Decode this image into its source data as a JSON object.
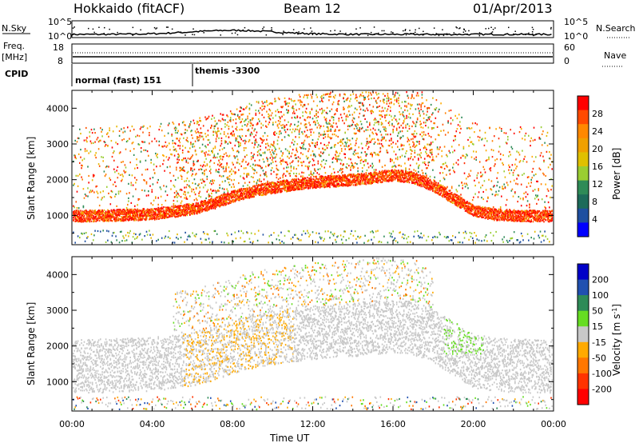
{
  "header": {
    "station": "Hokkaido (fitACF)",
    "beam": "Beam 12",
    "date": "01/Apr/2013"
  },
  "top_panels": {
    "nsky_label": "N.Sky",
    "nsky_ticks": [
      "10^5",
      "10^0"
    ],
    "nsearch_label": "N.Search",
    "nsearch_ticks": [
      "10^5",
      "10^0"
    ],
    "freq_label_top": "Freq.",
    "freq_label_unit": "[MHz]",
    "freq_ticks": [
      "18",
      "8"
    ],
    "nave_label": "Nave",
    "nave_ticks": [
      "60",
      "0"
    ],
    "cpid_label": "CPID",
    "cpid_segments": [
      {
        "start_hour": 0,
        "label": "normal (fast) 151"
      },
      {
        "start_hour": 6,
        "label": "themis -3300"
      }
    ]
  },
  "chart_data": [
    {
      "type": "heatmap",
      "panel": "power",
      "ylabel": "Slant Range [km]",
      "xlim_hours": [
        0,
        24
      ],
      "ylim": [
        180,
        4500
      ],
      "y_ticks": [
        1000,
        2000,
        3000,
        4000
      ],
      "colorbar_label": "Power [dB]",
      "colorbar_ticks": [
        "28",
        "24",
        "20",
        "16",
        "12",
        "8",
        "4"
      ],
      "colorbar_colors": [
        "#ff0000",
        "#ff4a00",
        "#ff8800",
        "#f0a000",
        "#e0c000",
        "#9acd32",
        "#2e8b57",
        "#1c6b5a",
        "#1e4fa0",
        "#0000ff"
      ],
      "main_band_km": [
        [
          0,
          1000
        ],
        [
          2,
          1020
        ],
        [
          4,
          1060
        ],
        [
          6,
          1200
        ],
        [
          7,
          1350
        ],
        [
          8,
          1550
        ],
        [
          9,
          1700
        ],
        [
          10,
          1800
        ],
        [
          11,
          1880
        ],
        [
          12,
          1950
        ],
        [
          13,
          1980
        ],
        [
          14,
          2020
        ],
        [
          15,
          2080
        ],
        [
          16,
          2150
        ],
        [
          17,
          2080
        ],
        [
          18,
          1850
        ],
        [
          19,
          1500
        ],
        [
          20,
          1150
        ],
        [
          21,
          1050
        ],
        [
          22,
          1020
        ],
        [
          23,
          1000
        ],
        [
          24,
          1000
        ]
      ]
    },
    {
      "type": "heatmap",
      "panel": "velocity",
      "ylabel": "Slant Range [km]",
      "xlabel": "Time UT",
      "xlim_hours": [
        0,
        24
      ],
      "ylim": [
        180,
        4500
      ],
      "y_ticks": [
        1000,
        2000,
        3000,
        4000
      ],
      "x_ticks": [
        "00:00",
        "04:00",
        "08:00",
        "12:00",
        "16:00",
        "20:00",
        "00:00"
      ],
      "colorbar_label": "Velocity [m s-1]",
      "colorbar_ticks": [
        "200",
        "100",
        "50",
        "15",
        "-15",
        "-50",
        "-100",
        "-200"
      ],
      "colorbar_colors": [
        "#0000c8",
        "#2050b0",
        "#2e8b57",
        "#66dd22",
        "#c8c8c8",
        "#ffaa00",
        "#ff7700",
        "#ff3300",
        "#ff0000"
      ]
    }
  ]
}
